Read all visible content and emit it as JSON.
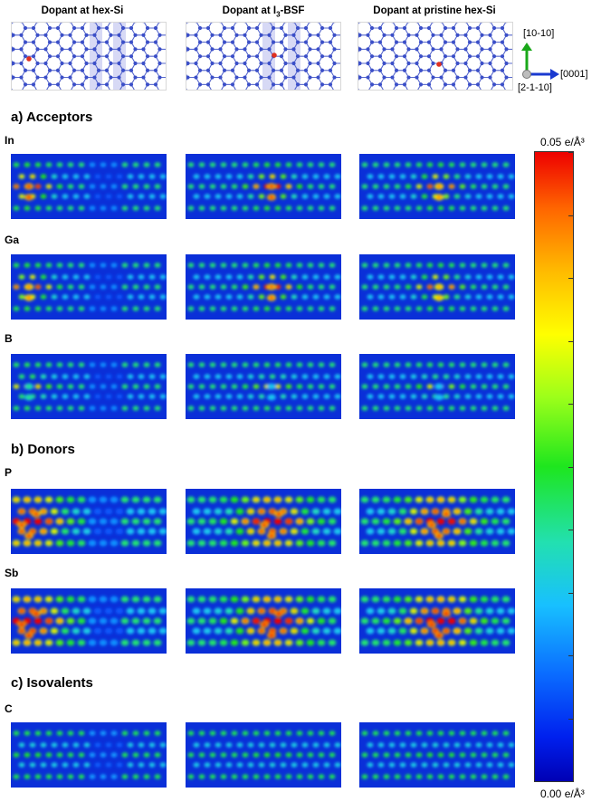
{
  "header": {
    "col1": "Dopant at hex-Si",
    "col2_prefix": "Dopant at I",
    "col2_sub": "3",
    "col2_suffix": "-BSF",
    "col3": "Dopant at pristine hex-Si"
  },
  "axes": {
    "vertical": "[10-10]",
    "horizontal": "[0001]",
    "normal": "[2-1-10]"
  },
  "sections": {
    "acceptors": "a) Acceptors",
    "donors": "b) Donors",
    "isovalents": "c) Isovalents"
  },
  "dopants": [
    "In",
    "Ga",
    "B",
    "P",
    "Sb",
    "C"
  ],
  "colorbar": {
    "max_label": "0.05 e/Å³",
    "min_label": "0.00 e/Å³",
    "min": 0.0,
    "max": 0.05,
    "unit": "e/Å³",
    "colors": [
      "#ee0000",
      "#ff6600",
      "#ffbb00",
      "#ffff00",
      "#9cff1a",
      "#1ee61e",
      "#22e0b0",
      "#18c0ff",
      "#0a6cff",
      "#0020ee",
      "#0000b4"
    ],
    "ticks": 11
  },
  "colors": {
    "atom": "#3b4fc8",
    "bond": "#5566cc",
    "dopant_atom": "#e03020",
    "bsf_highlight": "#c9ccf2",
    "map_background": "#0a2fd8"
  }
}
